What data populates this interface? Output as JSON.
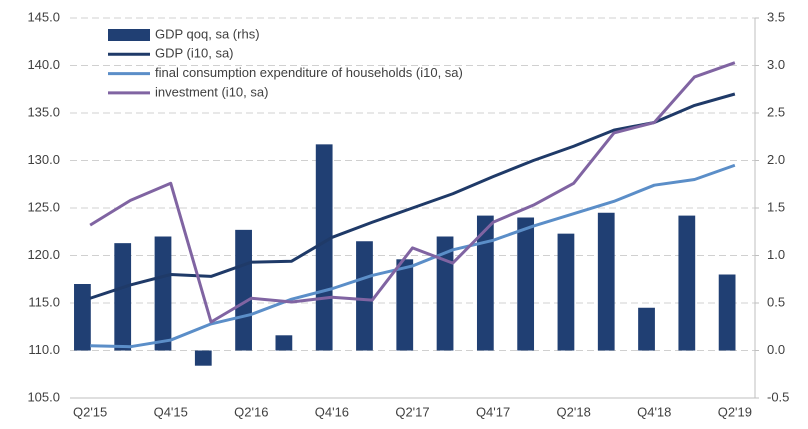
{
  "chart_data": {
    "type": "bar_line",
    "categories": [
      "Q2'15",
      null,
      "Q4'15",
      null,
      "Q2'16",
      null,
      "Q4'16",
      null,
      "Q2'17",
      null,
      "Q4'17",
      null,
      "Q2'18",
      null,
      "Q4'18",
      null,
      "Q2'19"
    ],
    "series": [
      {
        "name": "GDP qoq, sa (rhs)",
        "type": "bar",
        "axis": "y2",
        "color": "#203f73",
        "values": [
          0.7,
          1.13,
          1.2,
          -0.16,
          1.27,
          0.16,
          2.17,
          1.15,
          0.96,
          1.2,
          1.42,
          1.4,
          1.23,
          1.45,
          0.45,
          1.42,
          0.8
        ]
      },
      {
        "name": "GDP (i10, sa)",
        "type": "line",
        "color": "#1f3a68",
        "values": [
          115.5,
          116.9,
          118.0,
          117.8,
          119.3,
          119.4,
          121.9,
          123.5,
          125.0,
          126.5,
          128.3,
          130.0,
          131.5,
          133.2,
          134.0,
          135.8,
          137.0
        ]
      },
      {
        "name": "final consumption expenditure of households (i10, sa)",
        "type": "line",
        "color": "#5b8ec8",
        "values": [
          110.5,
          110.4,
          111.1,
          112.8,
          113.8,
          115.4,
          116.5,
          117.9,
          118.9,
          120.6,
          121.6,
          123.1,
          124.4,
          125.7,
          127.4,
          128.0,
          129.5
        ]
      },
      {
        "name": "investment (i10, sa)",
        "type": "line",
        "color": "#8064a2",
        "values": [
          123.2,
          125.8,
          127.6,
          113.0,
          115.5,
          115.1,
          115.6,
          115.3,
          120.8,
          119.2,
          123.5,
          125.3,
          127.6,
          132.9,
          134.0,
          138.8,
          140.3
        ]
      }
    ],
    "ylim": [
      105,
      145
    ],
    "yticks": [
      {
        "value": 105,
        "label": "105.0"
      },
      {
        "value": 110,
        "label": "110.0"
      },
      {
        "value": 115,
        "label": "115.0"
      },
      {
        "value": 120,
        "label": "120.0"
      },
      {
        "value": 125,
        "label": "125.0"
      },
      {
        "value": 130,
        "label": "130.0"
      },
      {
        "value": 135,
        "label": "135.0"
      },
      {
        "value": 140,
        "label": "140.0"
      },
      {
        "value": 145,
        "label": "145.0"
      }
    ],
    "y2lim": [
      -0.5,
      3.5
    ],
    "y2ticks": [
      -0.5,
      {
        "value": 0,
        "label": "0.0"
      },
      0.5,
      {
        "value": 1,
        "label": "1.0"
      },
      1.5,
      {
        "value": 2,
        "label": "2.0"
      },
      2.5,
      {
        "value": 3,
        "label": "3.0"
      },
      3.5
    ],
    "grid": true,
    "legend": "top-left"
  }
}
